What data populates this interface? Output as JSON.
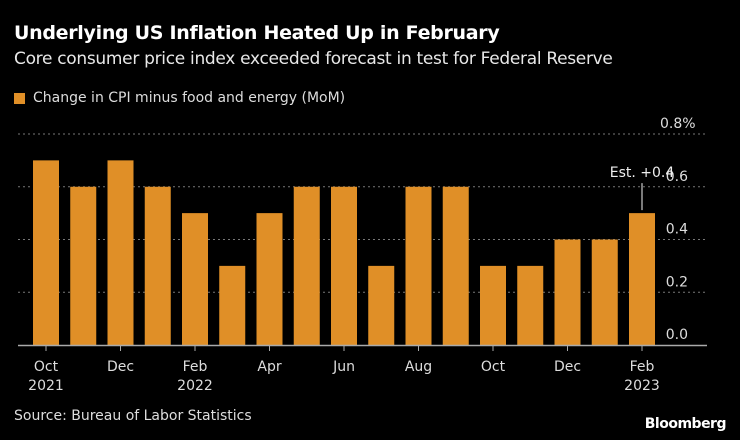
{
  "title": "Underlying US Inflation Heated Up in February",
  "subtitle": "Core consumer price index exceeded forecast in test for Federal Reserve",
  "source": "Source: Bureau of Labor Statistics",
  "brand": "Bloomberg",
  "colors": {
    "bar": "#e08f27",
    "grid": "#777777",
    "text": "#dddddd"
  },
  "chart_data": {
    "type": "bar",
    "title": "Underlying US Inflation Heated Up in February",
    "legend": [
      "Change in CPI minus food and energy (MoM)"
    ],
    "legend_position": "top-left",
    "categories": [
      "Oct 2021",
      "Nov 2021",
      "Dec 2021",
      "Jan 2022",
      "Feb 2022",
      "Mar 2022",
      "Apr 2022",
      "May 2022",
      "Jun 2022",
      "Jul 2022",
      "Aug 2022",
      "Sep 2022",
      "Oct 2022",
      "Nov 2022",
      "Dec 2022",
      "Jan 2023",
      "Feb 2023"
    ],
    "values": [
      0.7,
      0.6,
      0.7,
      0.6,
      0.5,
      0.3,
      0.5,
      0.6,
      0.6,
      0.3,
      0.6,
      0.6,
      0.3,
      0.3,
      0.4,
      0.4,
      0.5
    ],
    "x_tick_labels": [
      {
        "index": 0,
        "line1": "Oct",
        "line2": "2021"
      },
      {
        "index": 2,
        "line1": "Dec",
        "line2": ""
      },
      {
        "index": 4,
        "line1": "Feb",
        "line2": "2022"
      },
      {
        "index": 6,
        "line1": "Apr",
        "line2": ""
      },
      {
        "index": 8,
        "line1": "Jun",
        "line2": ""
      },
      {
        "index": 10,
        "line1": "Aug",
        "line2": ""
      },
      {
        "index": 12,
        "line1": "Oct",
        "line2": ""
      },
      {
        "index": 14,
        "line1": "Dec",
        "line2": ""
      },
      {
        "index": 16,
        "line1": "Feb",
        "line2": "2023"
      }
    ],
    "y_ticks": [
      0.0,
      0.2,
      0.4,
      0.6,
      0.8
    ],
    "y_tick_labels": [
      "0.0",
      "0.2",
      "0.4",
      "0.6",
      "0.8%"
    ],
    "ylim": [
      0,
      0.8
    ],
    "grid": true,
    "annotation": {
      "index": 16,
      "value": 0.4,
      "text": "Est. +0.4"
    },
    "xlabel": "",
    "ylabel": ""
  }
}
